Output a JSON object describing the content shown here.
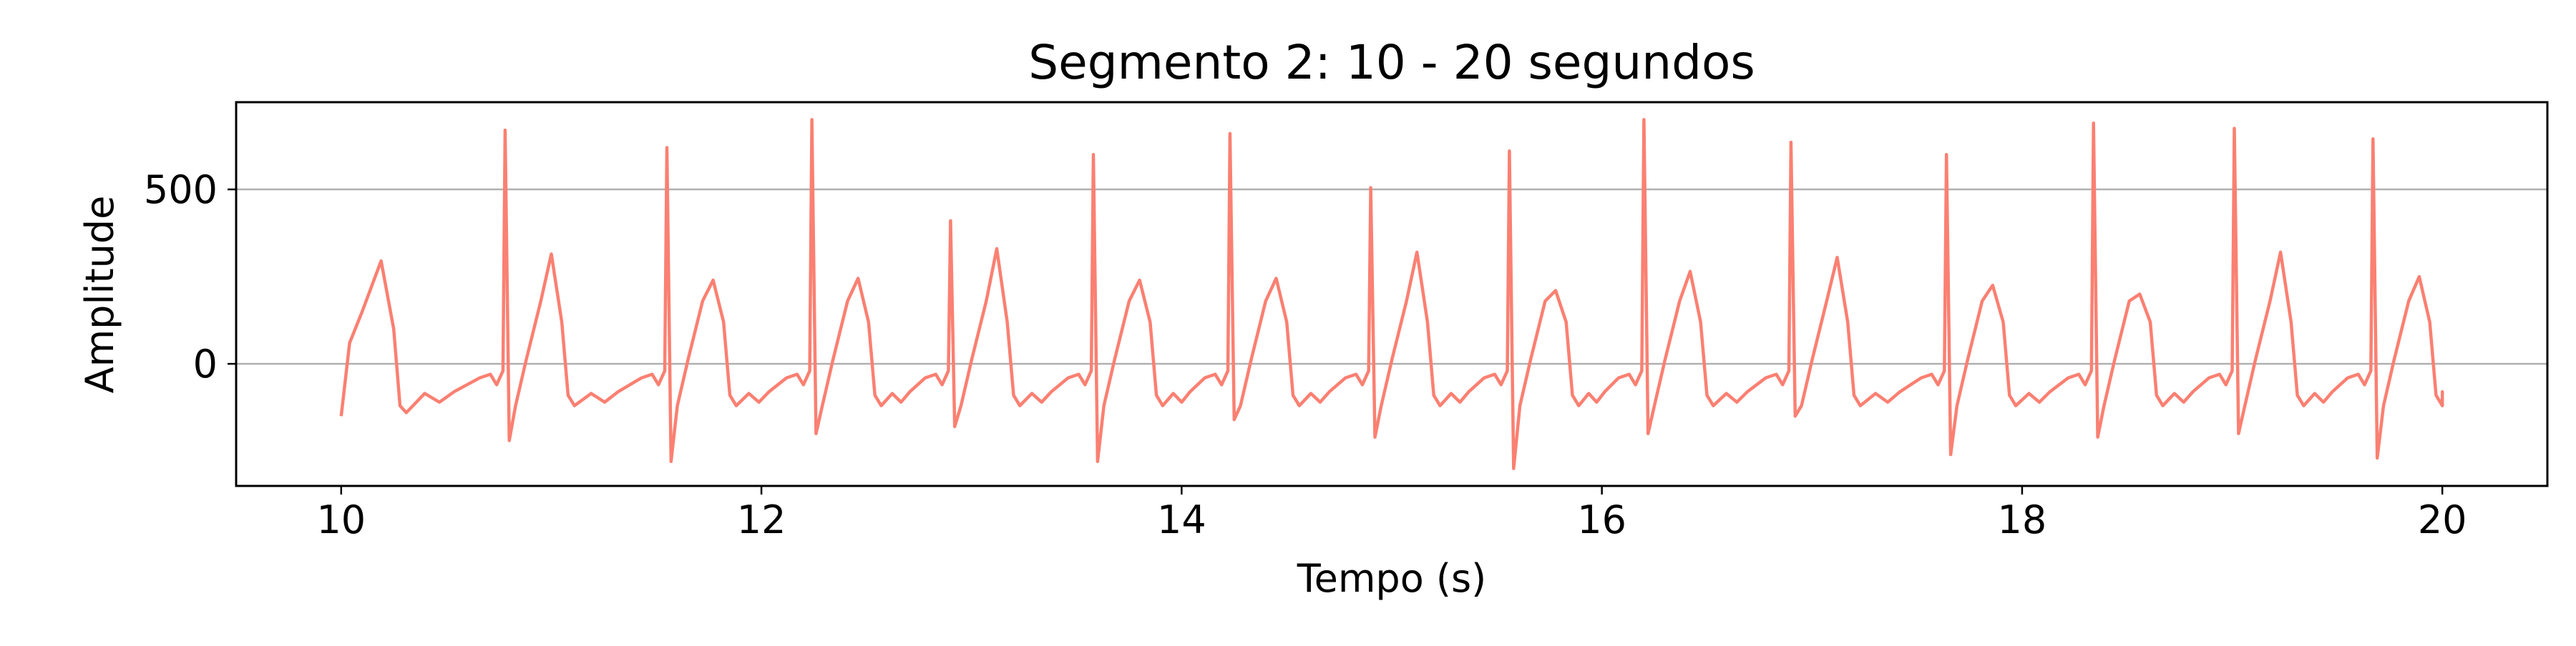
{
  "chart_data": {
    "type": "line",
    "title": "Segmento 2: 10 - 20 segundos",
    "xlabel": "Tempo (s)",
    "ylabel": "Amplitude",
    "xlim": [
      9.5,
      20.5
    ],
    "ylim": [
      -350,
      750
    ],
    "xticks": [
      10,
      12,
      14,
      16,
      18,
      20
    ],
    "xtick_labels": [
      "10",
      "12",
      "14",
      "16",
      "18",
      "20"
    ],
    "yticks": [
      0,
      500
    ],
    "ytick_labels": [
      "0",
      "500"
    ],
    "grid": "y-major",
    "legend": "none",
    "series": [
      {
        "color": "#FA8072",
        "beats": [
          {
            "t": 10.78,
            "r": 670,
            "s": -220,
            "tw": 315
          },
          {
            "t": 11.55,
            "r": 620,
            "s": -280,
            "tw": 240
          },
          {
            "t": 12.24,
            "r": 700,
            "s": -200,
            "tw": 245
          },
          {
            "t": 12.9,
            "r": 410,
            "s": -180,
            "tw": 330
          },
          {
            "t": 13.58,
            "r": 600,
            "s": -280,
            "tw": 240
          },
          {
            "t": 14.23,
            "r": 660,
            "s": -160,
            "tw": 245
          },
          {
            "t": 14.9,
            "r": 505,
            "s": -210,
            "tw": 320
          },
          {
            "t": 15.56,
            "r": 610,
            "s": -300,
            "tw": 210
          },
          {
            "t": 16.2,
            "r": 700,
            "s": -200,
            "tw": 265
          },
          {
            "t": 16.9,
            "r": 635,
            "s": -150,
            "tw": 305
          },
          {
            "t": 17.64,
            "r": 600,
            "s": -260,
            "tw": 225
          },
          {
            "t": 18.34,
            "r": 690,
            "s": -210,
            "tw": 200
          },
          {
            "t": 19.01,
            "r": 675,
            "s": -200,
            "tw": 320
          },
          {
            "t": 19.67,
            "r": 645,
            "s": -270,
            "tw": 250
          }
        ],
        "start": {
          "t": 10.0,
          "y": -150
        },
        "first_t_wave": {
          "t": 10.19,
          "y": 295
        },
        "end": {
          "t": 20.0,
          "y": -90
        }
      }
    ]
  }
}
